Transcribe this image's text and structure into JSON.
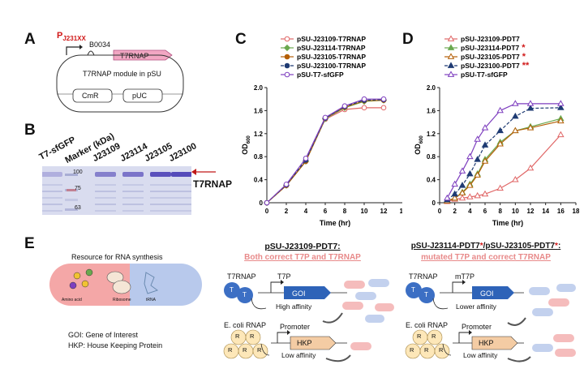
{
  "panels": {
    "a": {
      "letter": "A",
      "promoter_prefix": "P",
      "promoter_sub": "J231XX",
      "rbs": "B0034",
      "gene": "T7RNAP",
      "module_label": "T7RNAP module in pSU",
      "marker1": "CmR",
      "marker2": "pUC"
    },
    "b": {
      "letter": "B",
      "lanes": [
        "T7-sfGFP",
        "Marker (kDa)",
        "J23109",
        "J23114",
        "J23105",
        "J23100"
      ],
      "marker_kda": [
        "100",
        "75",
        "63"
      ],
      "band_label": "T7RNAP",
      "band_intensity": [
        0.05,
        0.0,
        0.45,
        0.55,
        0.85,
        0.9
      ]
    },
    "c": {
      "letter": "C"
    },
    "d": {
      "letter": "D"
    },
    "e": {
      "letter": "E",
      "resource_title": "Resource for RNA synthesis",
      "cell_labels": [
        "Amino acid",
        "Ribosome",
        "tRNA"
      ],
      "goi_def": "GOI: Gene of Interest",
      "hkp_def": "HKP: House Keeping Protein",
      "mid_title": "pSU-J23109-PDT7:",
      "mid_subtitle": "Both correct T7P and T7RNAP",
      "right_title_a": "pSU-J23114-PDT7",
      "right_title_sep": "/pSU-J23105-PDT7",
      "right_title_star": "*",
      "right_title_end": ":",
      "right_subtitle": "mutated T7P and correct T7RNAP",
      "t7rnap": "T7RNAP",
      "t7_sym": "T",
      "r_sym": "R",
      "t7p": "T7P",
      "mt7p": "mT7P",
      "goi": "GOI",
      "hkp": "HKP",
      "ecoli": "E. coli RNAP",
      "promoter": "Promoter",
      "high_aff": "High affinity",
      "lower_aff": "Lower affinity",
      "low_aff": "Low affinity"
    }
  },
  "chart_data": [
    {
      "id": "C",
      "type": "line",
      "xlabel": "Time (hr)",
      "ylabel": "OD600",
      "xlim": [
        0,
        14
      ],
      "ylim": [
        0,
        2.0
      ],
      "xticks": [
        "0",
        "2",
        "4",
        "6",
        "8",
        "10",
        "12",
        "14"
      ],
      "yticks": [
        "0",
        "0.4",
        "0.8",
        "1.2",
        "1.6",
        "2.0"
      ],
      "x": [
        0,
        2,
        4,
        6,
        8,
        10,
        12
      ],
      "series": [
        {
          "name": "pSU-J23109-T7RNAP",
          "color": "#e06666",
          "marker": "circle-open",
          "dash": "",
          "values": [
            0.0,
            0.3,
            0.72,
            1.45,
            1.62,
            1.65,
            1.65
          ]
        },
        {
          "name": "pSU-J23114-T7RNAP",
          "color": "#6aa84f",
          "marker": "diamond",
          "dash": "",
          "values": [
            0.0,
            0.3,
            0.72,
            1.46,
            1.65,
            1.76,
            1.78
          ]
        },
        {
          "name": "pSU-J23105-T7RNAP",
          "color": "#b45f06",
          "marker": "circle",
          "dash": "",
          "values": [
            0.0,
            0.3,
            0.72,
            1.47,
            1.66,
            1.77,
            1.78
          ]
        },
        {
          "name": "pSU-J23100-T7RNAP",
          "color": "#1f3b73",
          "marker": "circle",
          "dash": "4,2",
          "values": [
            0.0,
            0.31,
            0.74,
            1.47,
            1.67,
            1.78,
            1.79
          ]
        },
        {
          "name": "pSU-T7-sfGFP",
          "color": "#7e3fbf",
          "marker": "circle-open",
          "dash": "",
          "values": [
            0.0,
            0.32,
            0.77,
            1.48,
            1.68,
            1.8,
            1.8
          ]
        }
      ]
    },
    {
      "id": "D",
      "type": "line",
      "xlabel": "Time (hr)",
      "ylabel": "OD600",
      "xlim": [
        0,
        18
      ],
      "ylim": [
        0,
        2.0
      ],
      "xticks": [
        "0",
        "2",
        "4",
        "6",
        "8",
        "10",
        "12",
        "14",
        "16",
        "18"
      ],
      "yticks": [
        "0",
        "0.4",
        "0.8",
        "1.2",
        "1.6",
        "2.0"
      ],
      "x": [
        1,
        2,
        3,
        4,
        5,
        6,
        8,
        10,
        12,
        16
      ],
      "series": [
        {
          "name": "pSU-J23109-PDT7",
          "stars": "",
          "color": "#e06666",
          "marker": "triangle-open",
          "dash": "",
          "values": [
            0.02,
            0.06,
            0.08,
            0.1,
            0.12,
            0.15,
            0.25,
            0.4,
            0.6,
            1.18
          ]
        },
        {
          "name": "pSU-J23114-PDT7",
          "stars": "*",
          "color": "#6aa84f",
          "marker": "triangle",
          "dash": "",
          "values": [
            0.03,
            0.08,
            0.18,
            0.32,
            0.5,
            0.75,
            1.05,
            1.25,
            1.32,
            1.46
          ]
        },
        {
          "name": "pSU-J23105-PDT7",
          "stars": "*",
          "color": "#b45f06",
          "marker": "triangle-open",
          "dash": "",
          "values": [
            0.03,
            0.08,
            0.17,
            0.3,
            0.48,
            0.72,
            1.02,
            1.25,
            1.3,
            1.42
          ]
        },
        {
          "name": "pSU-J23100-PDT7",
          "stars": "**",
          "color": "#1f3b73",
          "marker": "triangle",
          "dash": "4,2",
          "values": [
            0.05,
            0.15,
            0.3,
            0.5,
            0.75,
            1.0,
            1.25,
            1.5,
            1.64,
            1.65
          ]
        },
        {
          "name": "pSU-T7-sfGFP",
          "stars": "",
          "color": "#7e3fbf",
          "marker": "triangle-open",
          "dash": "",
          "values": [
            0.08,
            0.32,
            0.55,
            0.8,
            1.1,
            1.3,
            1.6,
            1.72,
            1.72,
            1.72
          ]
        }
      ]
    }
  ]
}
